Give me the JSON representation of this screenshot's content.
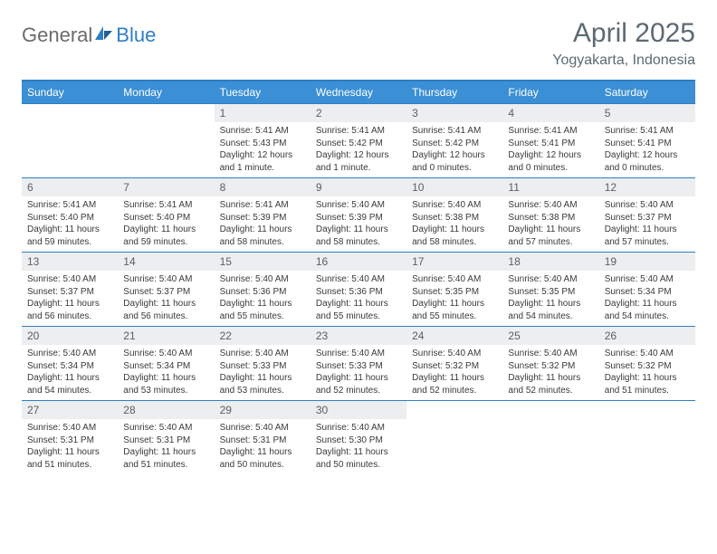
{
  "logo": {
    "text1": "General",
    "text2": "Blue"
  },
  "title": "April 2025",
  "location": "Yogyakarta, Indonesia",
  "colors": {
    "header_bg": "#3b8fd4",
    "header_line": "#2f7ec2",
    "daynum_bg": "#eceeef",
    "title_color": "#5d6a74",
    "text_color": "#3a3a3a"
  },
  "day_headers": [
    "Sunday",
    "Monday",
    "Tuesday",
    "Wednesday",
    "Thursday",
    "Friday",
    "Saturday"
  ],
  "weeks": [
    [
      {
        "num": "",
        "sunrise": "",
        "sunset": "",
        "daylight": ""
      },
      {
        "num": "",
        "sunrise": "",
        "sunset": "",
        "daylight": ""
      },
      {
        "num": "1",
        "sunrise": "Sunrise: 5:41 AM",
        "sunset": "Sunset: 5:43 PM",
        "daylight": "Daylight: 12 hours and 1 minute."
      },
      {
        "num": "2",
        "sunrise": "Sunrise: 5:41 AM",
        "sunset": "Sunset: 5:42 PM",
        "daylight": "Daylight: 12 hours and 1 minute."
      },
      {
        "num": "3",
        "sunrise": "Sunrise: 5:41 AM",
        "sunset": "Sunset: 5:42 PM",
        "daylight": "Daylight: 12 hours and 0 minutes."
      },
      {
        "num": "4",
        "sunrise": "Sunrise: 5:41 AM",
        "sunset": "Sunset: 5:41 PM",
        "daylight": "Daylight: 12 hours and 0 minutes."
      },
      {
        "num": "5",
        "sunrise": "Sunrise: 5:41 AM",
        "sunset": "Sunset: 5:41 PM",
        "daylight": "Daylight: 12 hours and 0 minutes."
      }
    ],
    [
      {
        "num": "6",
        "sunrise": "Sunrise: 5:41 AM",
        "sunset": "Sunset: 5:40 PM",
        "daylight": "Daylight: 11 hours and 59 minutes."
      },
      {
        "num": "7",
        "sunrise": "Sunrise: 5:41 AM",
        "sunset": "Sunset: 5:40 PM",
        "daylight": "Daylight: 11 hours and 59 minutes."
      },
      {
        "num": "8",
        "sunrise": "Sunrise: 5:41 AM",
        "sunset": "Sunset: 5:39 PM",
        "daylight": "Daylight: 11 hours and 58 minutes."
      },
      {
        "num": "9",
        "sunrise": "Sunrise: 5:40 AM",
        "sunset": "Sunset: 5:39 PM",
        "daylight": "Daylight: 11 hours and 58 minutes."
      },
      {
        "num": "10",
        "sunrise": "Sunrise: 5:40 AM",
        "sunset": "Sunset: 5:38 PM",
        "daylight": "Daylight: 11 hours and 58 minutes."
      },
      {
        "num": "11",
        "sunrise": "Sunrise: 5:40 AM",
        "sunset": "Sunset: 5:38 PM",
        "daylight": "Daylight: 11 hours and 57 minutes."
      },
      {
        "num": "12",
        "sunrise": "Sunrise: 5:40 AM",
        "sunset": "Sunset: 5:37 PM",
        "daylight": "Daylight: 11 hours and 57 minutes."
      }
    ],
    [
      {
        "num": "13",
        "sunrise": "Sunrise: 5:40 AM",
        "sunset": "Sunset: 5:37 PM",
        "daylight": "Daylight: 11 hours and 56 minutes."
      },
      {
        "num": "14",
        "sunrise": "Sunrise: 5:40 AM",
        "sunset": "Sunset: 5:37 PM",
        "daylight": "Daylight: 11 hours and 56 minutes."
      },
      {
        "num": "15",
        "sunrise": "Sunrise: 5:40 AM",
        "sunset": "Sunset: 5:36 PM",
        "daylight": "Daylight: 11 hours and 55 minutes."
      },
      {
        "num": "16",
        "sunrise": "Sunrise: 5:40 AM",
        "sunset": "Sunset: 5:36 PM",
        "daylight": "Daylight: 11 hours and 55 minutes."
      },
      {
        "num": "17",
        "sunrise": "Sunrise: 5:40 AM",
        "sunset": "Sunset: 5:35 PM",
        "daylight": "Daylight: 11 hours and 55 minutes."
      },
      {
        "num": "18",
        "sunrise": "Sunrise: 5:40 AM",
        "sunset": "Sunset: 5:35 PM",
        "daylight": "Daylight: 11 hours and 54 minutes."
      },
      {
        "num": "19",
        "sunrise": "Sunrise: 5:40 AM",
        "sunset": "Sunset: 5:34 PM",
        "daylight": "Daylight: 11 hours and 54 minutes."
      }
    ],
    [
      {
        "num": "20",
        "sunrise": "Sunrise: 5:40 AM",
        "sunset": "Sunset: 5:34 PM",
        "daylight": "Daylight: 11 hours and 54 minutes."
      },
      {
        "num": "21",
        "sunrise": "Sunrise: 5:40 AM",
        "sunset": "Sunset: 5:34 PM",
        "daylight": "Daylight: 11 hours and 53 minutes."
      },
      {
        "num": "22",
        "sunrise": "Sunrise: 5:40 AM",
        "sunset": "Sunset: 5:33 PM",
        "daylight": "Daylight: 11 hours and 53 minutes."
      },
      {
        "num": "23",
        "sunrise": "Sunrise: 5:40 AM",
        "sunset": "Sunset: 5:33 PM",
        "daylight": "Daylight: 11 hours and 52 minutes."
      },
      {
        "num": "24",
        "sunrise": "Sunrise: 5:40 AM",
        "sunset": "Sunset: 5:32 PM",
        "daylight": "Daylight: 11 hours and 52 minutes."
      },
      {
        "num": "25",
        "sunrise": "Sunrise: 5:40 AM",
        "sunset": "Sunset: 5:32 PM",
        "daylight": "Daylight: 11 hours and 52 minutes."
      },
      {
        "num": "26",
        "sunrise": "Sunrise: 5:40 AM",
        "sunset": "Sunset: 5:32 PM",
        "daylight": "Daylight: 11 hours and 51 minutes."
      }
    ],
    [
      {
        "num": "27",
        "sunrise": "Sunrise: 5:40 AM",
        "sunset": "Sunset: 5:31 PM",
        "daylight": "Daylight: 11 hours and 51 minutes."
      },
      {
        "num": "28",
        "sunrise": "Sunrise: 5:40 AM",
        "sunset": "Sunset: 5:31 PM",
        "daylight": "Daylight: 11 hours and 51 minutes."
      },
      {
        "num": "29",
        "sunrise": "Sunrise: 5:40 AM",
        "sunset": "Sunset: 5:31 PM",
        "daylight": "Daylight: 11 hours and 50 minutes."
      },
      {
        "num": "30",
        "sunrise": "Sunrise: 5:40 AM",
        "sunset": "Sunset: 5:30 PM",
        "daylight": "Daylight: 11 hours and 50 minutes."
      },
      {
        "num": "",
        "sunrise": "",
        "sunset": "",
        "daylight": ""
      },
      {
        "num": "",
        "sunrise": "",
        "sunset": "",
        "daylight": ""
      },
      {
        "num": "",
        "sunrise": "",
        "sunset": "",
        "daylight": ""
      }
    ]
  ]
}
